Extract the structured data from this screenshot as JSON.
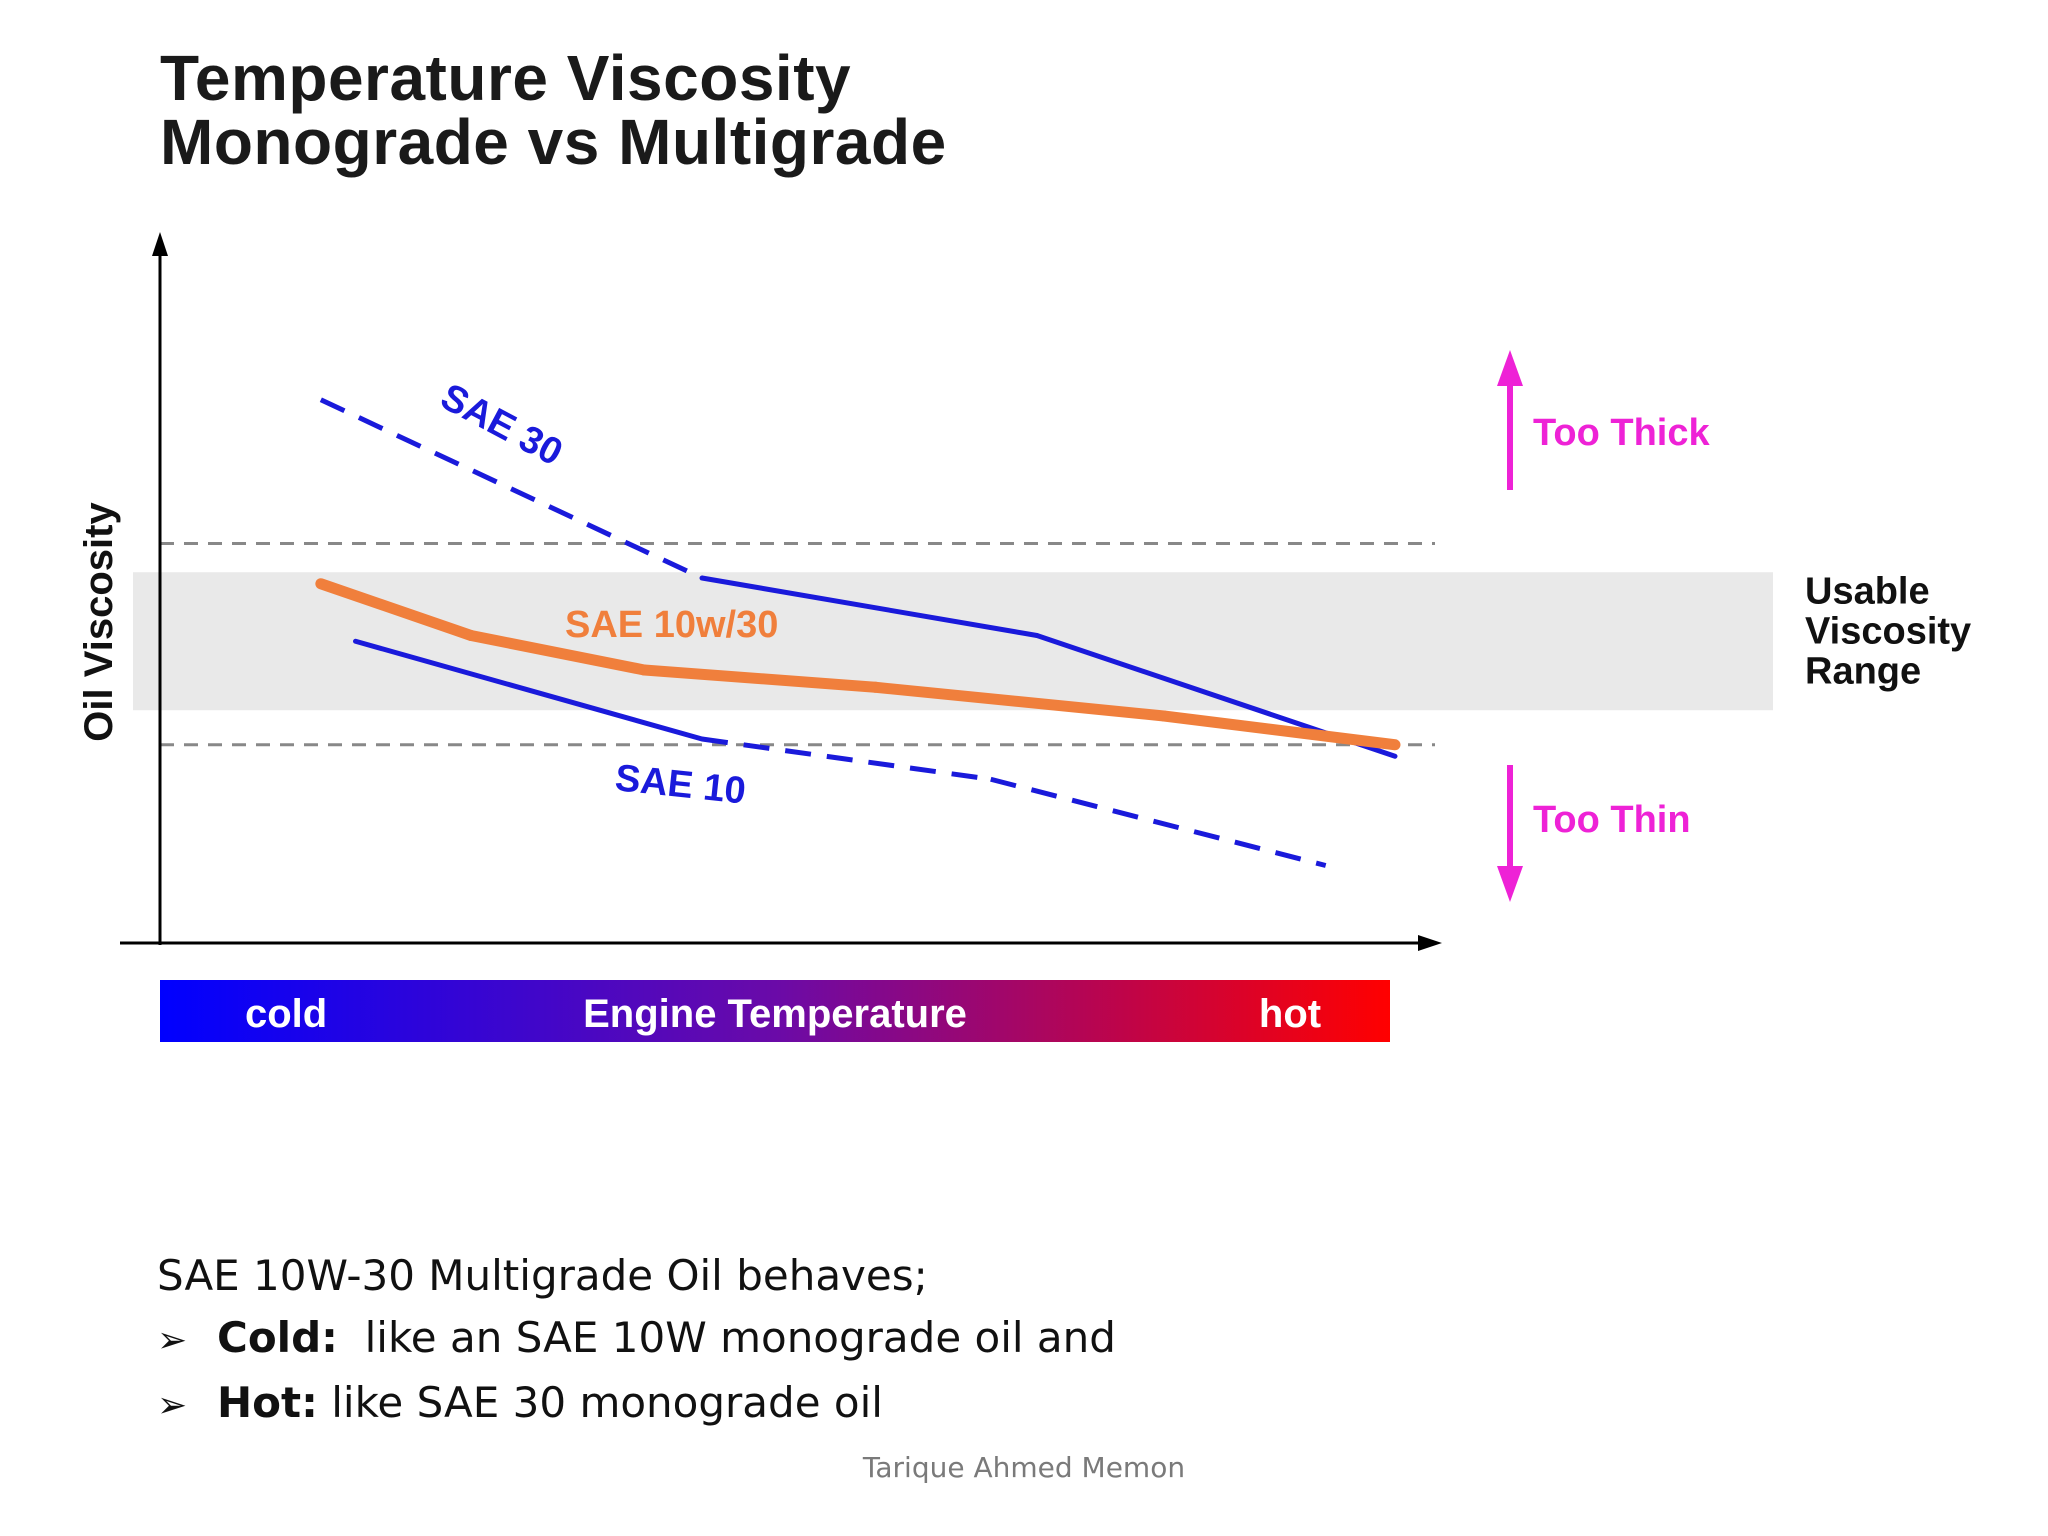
{
  "title": {
    "line1": "Temperature Viscosity",
    "line2": "Monograde vs Multigrade"
  },
  "colors": {
    "sae30": "#1a1adb",
    "sae10": "#1a1adb",
    "sae10w30": "#f07f3c",
    "usable_band": "#e9e9e9",
    "annotation_magenta": "#ee22d6",
    "gradient_cold": "#0000ff",
    "gradient_hot": "#ff0000"
  },
  "chart_data": {
    "type": "line",
    "xlabel": "Engine Temperature",
    "ylabel": "Oil Viscosity",
    "x_range_labels": {
      "low": "cold",
      "high": "hot"
    },
    "xlim": [
      0,
      100
    ],
    "ylim": [
      0,
      100
    ],
    "grid": false,
    "band": {
      "label": "Usable Viscosity Range",
      "low": 33,
      "high": 57
    },
    "thresholds": [
      {
        "name": "upper-limit",
        "y": 62,
        "style": "dashed"
      },
      {
        "name": "lower-limit",
        "y": 27,
        "style": "dashed"
      }
    ],
    "annotations": [
      {
        "name": "too-thick",
        "text": "Too Thick",
        "direction": "up"
      },
      {
        "name": "too-thin",
        "text": "Too Thin",
        "direction": "down"
      }
    ],
    "series": [
      {
        "name": "SAE 30",
        "x": [
          7,
          40,
          69,
          100
        ],
        "y": [
          87,
          56,
          46,
          25
        ],
        "dashed_until_x": 34
      },
      {
        "name": "SAE 10w/30",
        "x": [
          7,
          20,
          35,
          55,
          80,
          100
        ],
        "y": [
          55,
          46,
          40,
          37,
          32,
          27
        ]
      },
      {
        "name": "SAE 10",
        "x": [
          10,
          40,
          65,
          94
        ],
        "y": [
          45,
          28,
          21,
          6
        ],
        "dashed_from_x": 40
      }
    ]
  },
  "notes": {
    "intro": "SAE 10W-30 Multigrade Oil behaves;",
    "items": [
      {
        "head": "Cold:",
        "text": "  like an SAE 10W monograde oil and"
      },
      {
        "head": "Hot:",
        "text": " like SAE 30 monograde oil"
      }
    ],
    "bullet_glyph": "➢"
  },
  "author": "Tarique Ahmed Memon"
}
